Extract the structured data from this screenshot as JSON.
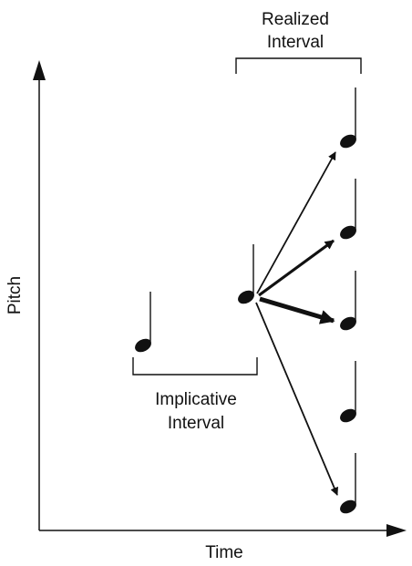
{
  "axes": {
    "y_label": "Pitch",
    "x_label": "Time"
  },
  "brackets": {
    "realized": {
      "line1": "Realized",
      "line2": "Interval"
    },
    "implicative": {
      "line1": "Implicative",
      "line2": "Interval"
    }
  },
  "colors": {
    "ink": "#111111",
    "background": "#ffffff"
  }
}
